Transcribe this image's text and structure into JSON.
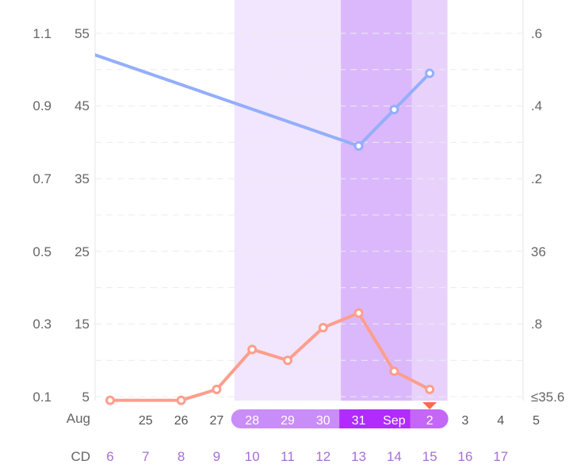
{
  "chart_data": {
    "type": "line",
    "colors": {
      "temperature_line": "#94aefc",
      "orange_line": "#fd9e8c",
      "fertile_band": "#f1e6fd",
      "peak_band": "#dbb8fb",
      "post_band": "#e8d2fc",
      "pill_light": "#c98df7",
      "pill_dark": "#b12bff",
      "pill_medium": "#c466f7",
      "marker": "#fa6a4e",
      "cycle_day_text": "#a66fd8"
    },
    "axes": {
      "left_outer": {
        "ticks": [
          "1.1",
          "0.9",
          "0.7",
          "0.5",
          "0.3",
          "0.1"
        ],
        "range": [
          0.1,
          1.1
        ]
      },
      "left_inner": {
        "ticks": [
          "55",
          "45",
          "35",
          "25",
          "15",
          "5"
        ],
        "range": [
          5,
          55
        ]
      },
      "right": {
        "ticks": [
          ".6",
          ".4",
          ".2",
          "36",
          ".8",
          "≤35.6"
        ],
        "range": [
          35.6,
          36.6
        ]
      },
      "grid": true
    },
    "month_label": "Aug",
    "cycle_day_label": "CD",
    "columns": [
      {
        "cd": "6",
        "date": ""
      },
      {
        "cd": "7",
        "date": "25"
      },
      {
        "cd": "8",
        "date": "26"
      },
      {
        "cd": "9",
        "date": "27"
      },
      {
        "cd": "10",
        "date": "28"
      },
      {
        "cd": "11",
        "date": "29"
      },
      {
        "cd": "12",
        "date": "30"
      },
      {
        "cd": "13",
        "date": "31"
      },
      {
        "cd": "14",
        "date": "Sep"
      },
      {
        "cd": "15",
        "date": "2"
      },
      {
        "cd": "16",
        "date": "3"
      },
      {
        "cd": "17",
        "date": "4"
      },
      {
        "cd": "",
        "date": "5"
      }
    ],
    "bands": {
      "fertile": [
        10,
        15
      ],
      "peak": [
        13,
        14
      ],
      "post": [
        15,
        15
      ]
    },
    "selected_cd": 15,
    "series": [
      {
        "axis": "right",
        "points": [
          [
            5,
            36.56
          ],
          [
            13,
            36.29
          ],
          [
            14,
            36.39
          ],
          [
            15,
            36.49
          ]
        ]
      },
      {
        "axis": "left_inner",
        "points": [
          [
            6,
            4.5
          ],
          [
            8,
            4.5
          ],
          [
            9,
            6
          ],
          [
            10,
            11.5
          ],
          [
            11,
            10
          ],
          [
            12,
            14.5
          ],
          [
            13,
            16.5
          ],
          [
            14,
            8.5
          ],
          [
            15,
            6
          ]
        ]
      }
    ]
  }
}
